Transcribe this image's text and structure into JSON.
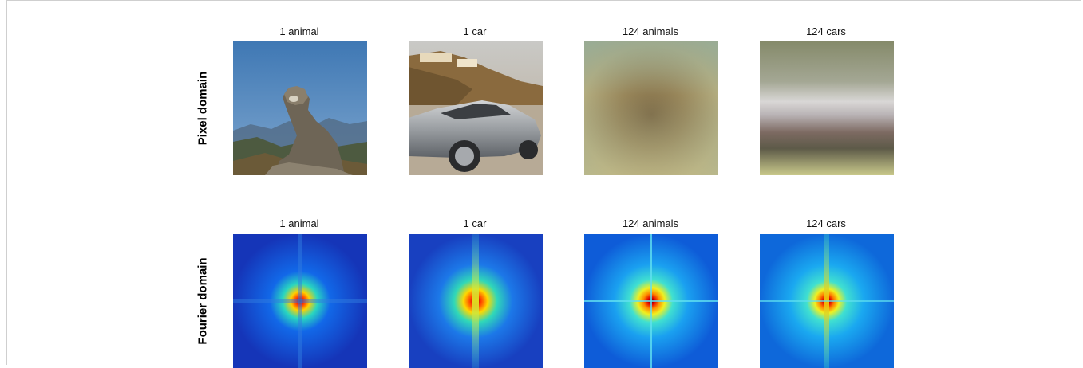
{
  "figure": {
    "rows": [
      {
        "label": "Pixel domain",
        "panels": [
          {
            "caption": "1 animal",
            "content": "cougar photograph"
          },
          {
            "caption": "1 car",
            "content": "silver sports car photograph"
          },
          {
            "caption": "124 animals",
            "content": "averaged animal images"
          },
          {
            "caption": "124 cars",
            "content": "averaged car images"
          }
        ]
      },
      {
        "label": "Fourier domain",
        "panels": [
          {
            "caption": "1 animal",
            "content": "fourier spectrum"
          },
          {
            "caption": "1 car",
            "content": "fourier spectrum"
          },
          {
            "caption": "124 animals",
            "content": "averaged fourier spectrum"
          },
          {
            "caption": "124 cars",
            "content": "averaged fourier spectrum"
          }
        ]
      }
    ]
  }
}
